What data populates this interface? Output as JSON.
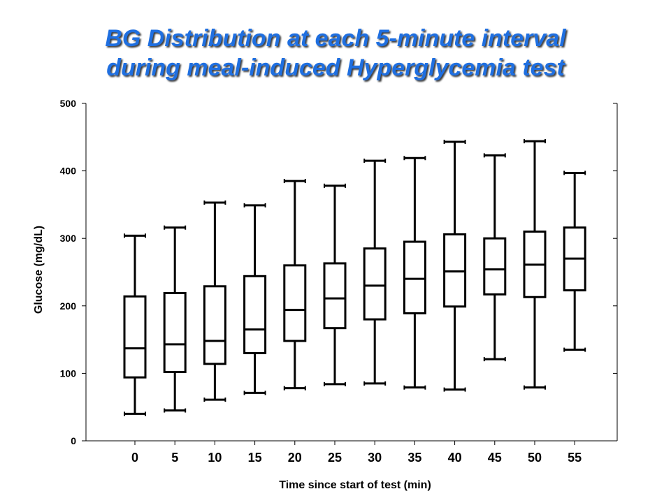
{
  "chart_data": {
    "type": "box",
    "title_lines": [
      "BG Distribution at each 5-minute interval",
      "during meal-induced Hyperglycemia test"
    ],
    "xlabel": "Time since start of test (min)",
    "ylabel": "Glucose (mg/dL)",
    "ylim": [
      0,
      500
    ],
    "yticks": [
      0,
      100,
      200,
      300,
      400,
      500
    ],
    "categories": [
      "0",
      "5",
      "10",
      "15",
      "20",
      "25",
      "30",
      "35",
      "40",
      "45",
      "50",
      "55"
    ],
    "boxes": [
      {
        "x": "0",
        "min": 40,
        "q1": 94,
        "median": 137,
        "q3": 214,
        "max": 304
      },
      {
        "x": "5",
        "min": 45,
        "q1": 102,
        "median": 143,
        "q3": 219,
        "max": 316
      },
      {
        "x": "10",
        "min": 61,
        "q1": 114,
        "median": 148,
        "q3": 229,
        "max": 353
      },
      {
        "x": "15",
        "min": 71,
        "q1": 130,
        "median": 165,
        "q3": 244,
        "max": 349
      },
      {
        "x": "20",
        "min": 78,
        "q1": 148,
        "median": 194,
        "q3": 260,
        "max": 385
      },
      {
        "x": "25",
        "min": 84,
        "q1": 167,
        "median": 211,
        "q3": 263,
        "max": 378
      },
      {
        "x": "30",
        "min": 85,
        "q1": 180,
        "median": 230,
        "q3": 285,
        "max": 415
      },
      {
        "x": "35",
        "min": 79,
        "q1": 189,
        "median": 240,
        "q3": 295,
        "max": 419
      },
      {
        "x": "40",
        "min": 76,
        "q1": 199,
        "median": 251,
        "q3": 306,
        "max": 443
      },
      {
        "x": "45",
        "min": 121,
        "q1": 217,
        "median": 254,
        "q3": 300,
        "max": 423
      },
      {
        "x": "50",
        "min": 79,
        "q1": 213,
        "median": 261,
        "q3": 310,
        "max": 444
      },
      {
        "x": "55",
        "min": 135,
        "q1": 223,
        "median": 270,
        "q3": 316,
        "max": 397
      }
    ],
    "grid": false,
    "colors": {
      "title": "#1f6fe0",
      "marks": "#000000",
      "background": "#ffffff"
    }
  }
}
